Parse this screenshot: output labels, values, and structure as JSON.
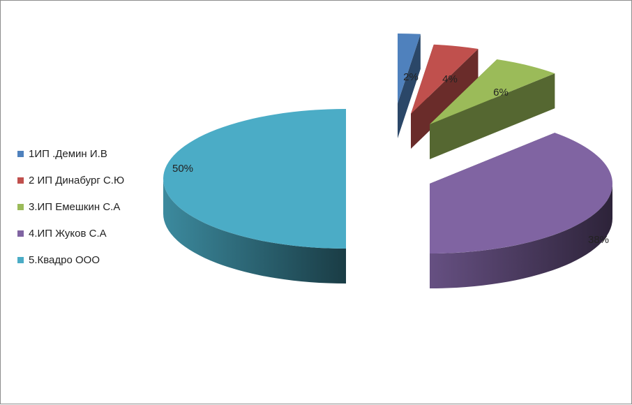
{
  "chart_data": {
    "type": "pie",
    "variant": "3d-exploded",
    "title": "",
    "categories": [
      "1ИП .Демин И.В",
      "2 ИП Динабург С.Ю",
      "3.ИП Емешкин С.А",
      "4.ИП Жуков С.А",
      "5.Квадро ООО"
    ],
    "values": [
      2,
      4,
      6,
      38,
      50
    ],
    "labels": [
      "2%",
      "4%",
      "6%",
      "38%",
      "50%"
    ],
    "colors": [
      "#4F81BD",
      "#C0504D",
      "#9BBB59",
      "#8064A2",
      "#4BACC6"
    ],
    "legend_position": "left"
  }
}
